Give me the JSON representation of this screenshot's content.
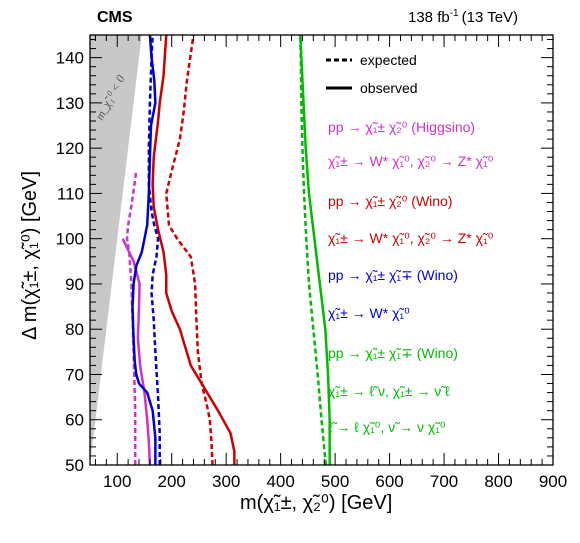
{
  "header": {
    "experiment": "CMS",
    "lumi": "138 fb",
    "lumi_exp": "-1",
    "energy": "(13 TeV)"
  },
  "region_label": "m_χ̃₁⁰ < 0",
  "legend": {
    "expected_label": "expected",
    "observed_label": "observed",
    "entries": [
      {
        "line1": "pp → χ̃₁± χ̃₂⁰ (Higgsino)",
        "line2": "χ̃₁± → W* χ̃₁⁰, χ̃₂⁰ → Z* χ̃₁⁰",
        "color": "#cc33cc"
      },
      {
        "line1": "pp → χ̃₁± χ̃₂⁰ (Wino)",
        "line2": "χ̃₁± → W* χ̃₁⁰, χ̃₂⁰ → Z* χ̃₁⁰",
        "color": "#cc0000"
      },
      {
        "line1": "pp → χ̃₁± χ̃₁∓ (Wino)",
        "line2": "χ̃₁± → W* χ̃₁⁰",
        "color": "#0000cc"
      },
      {
        "line1": "pp → χ̃₁± χ̃₁∓ (Wino)",
        "line2": "χ̃₁± → ℓ̃ ν, χ̃₁± → ν̃ ℓ",
        "line3": "ℓ̃ → ℓ χ̃₁⁰, ν̃ → ν χ̃₁⁰",
        "color": "#00bb00"
      }
    ]
  },
  "chart_data": {
    "type": "line",
    "xlabel": "m(χ̃₁±, χ̃₂⁰) [GeV]",
    "ylabel": "Δ m(χ̃₁±, χ̃₁⁰) [GeV]",
    "xlim": [
      50,
      900
    ],
    "ylim": [
      50,
      145
    ],
    "xticks": [
      100,
      200,
      300,
      400,
      500,
      600,
      700,
      800,
      900
    ],
    "yticks": [
      50,
      60,
      70,
      80,
      90,
      100,
      110,
      120,
      130,
      140
    ],
    "excluded_region": {
      "label": "m_χ̃₁⁰ < 0",
      "color": "#c8c8c8",
      "boundary": [
        [
          50,
          50
        ],
        [
          50,
          145
        ],
        [
          145,
          145
        ]
      ]
    },
    "series": [
      {
        "name": "Higgsino expected",
        "color": "#cc33cc",
        "style": "dashed",
        "points": [
          [
            133,
            50
          ],
          [
            133,
            62
          ],
          [
            130,
            75
          ],
          [
            126,
            90
          ],
          [
            122,
            97
          ],
          [
            118,
            100
          ],
          [
            120,
            103
          ],
          [
            127,
            108
          ],
          [
            135,
            115
          ]
        ]
      },
      {
        "name": "Higgsino observed",
        "color": "#cc33cc",
        "style": "solid",
        "points": [
          [
            160,
            50
          ],
          [
            158,
            55
          ],
          [
            155,
            60
          ],
          [
            150,
            66
          ],
          [
            142,
            72
          ],
          [
            138,
            78
          ],
          [
            140,
            85
          ],
          [
            141,
            90
          ],
          [
            130,
            95
          ],
          [
            118,
            98
          ],
          [
            110,
            100
          ]
        ]
      },
      {
        "name": "Wino chargino-neutralino expected",
        "color": "#cc0000",
        "style": "dashed",
        "points": [
          [
            275,
            50
          ],
          [
            273,
            55
          ],
          [
            270,
            60
          ],
          [
            265,
            63
          ],
          [
            255,
            68
          ],
          [
            248,
            75
          ],
          [
            245,
            83
          ],
          [
            243,
            90
          ],
          [
            235,
            96
          ],
          [
            210,
            100
          ],
          [
            195,
            103
          ],
          [
            190,
            110
          ],
          [
            200,
            115
          ],
          [
            215,
            122
          ],
          [
            222,
            128
          ],
          [
            228,
            135
          ],
          [
            240,
            145
          ]
        ]
      },
      {
        "name": "Wino chargino-neutralino observed",
        "color": "#cc0000",
        "style": "solid",
        "points": [
          [
            315,
            50
          ],
          [
            315,
            53
          ],
          [
            308,
            57
          ],
          [
            285,
            62
          ],
          [
            255,
            68
          ],
          [
            235,
            72
          ],
          [
            225,
            76
          ],
          [
            215,
            80
          ],
          [
            200,
            84
          ],
          [
            190,
            88
          ],
          [
            190,
            92
          ],
          [
            185,
            97
          ],
          [
            175,
            102
          ],
          [
            167,
            107
          ],
          [
            165,
            112
          ],
          [
            167,
            118
          ],
          [
            175,
            126
          ],
          [
            178,
            130
          ],
          [
            185,
            136
          ],
          [
            190,
            145
          ]
        ]
      },
      {
        "name": "Wino chargino-pair W expected",
        "color": "#0000cc",
        "style": "dashed",
        "points": [
          [
            178,
            50
          ],
          [
            178,
            57
          ],
          [
            175,
            65
          ],
          [
            170,
            75
          ],
          [
            167,
            82
          ],
          [
            163,
            88
          ],
          [
            165,
            92
          ],
          [
            172,
            96
          ],
          [
            175,
            100
          ],
          [
            168,
            103
          ],
          [
            163,
            106
          ],
          [
            158,
            112
          ],
          [
            158,
            120
          ],
          [
            160,
            130
          ],
          [
            163,
            140
          ],
          [
            165,
            145
          ]
        ]
      },
      {
        "name": "Wino chargino-pair W observed",
        "color": "#0000cc",
        "style": "solid",
        "points": [
          [
            170,
            50
          ],
          [
            170,
            56
          ],
          [
            165,
            62
          ],
          [
            155,
            66
          ],
          [
            140,
            68
          ],
          [
            135,
            70
          ],
          [
            132,
            73
          ],
          [
            130,
            78
          ],
          [
            128,
            85
          ],
          [
            130,
            90
          ],
          [
            135,
            94
          ],
          [
            145,
            97
          ],
          [
            150,
            100
          ],
          [
            155,
            103
          ],
          [
            158,
            110
          ],
          [
            160,
            118
          ],
          [
            162,
            125
          ],
          [
            170,
            130
          ],
          [
            168,
            135
          ],
          [
            163,
            140
          ],
          [
            160,
            145
          ]
        ]
      },
      {
        "name": "Wino chargino-pair slepton expected",
        "color": "#00bb00",
        "style": "dashed",
        "points": [
          [
            483,
            50
          ],
          [
            475,
            60
          ],
          [
            468,
            70
          ],
          [
            460,
            80
          ],
          [
            452,
            90
          ],
          [
            447,
            100
          ],
          [
            443,
            110
          ],
          [
            440,
            120
          ],
          [
            438,
            130
          ],
          [
            437,
            140
          ],
          [
            436,
            145
          ]
        ]
      },
      {
        "name": "Wino chargino-pair slepton observed",
        "color": "#00bb00",
        "style": "solid",
        "points": [
          [
            490,
            50
          ],
          [
            490,
            60
          ],
          [
            487,
            70
          ],
          [
            482,
            80
          ],
          [
            472,
            90
          ],
          [
            462,
            100
          ],
          [
            452,
            110
          ],
          [
            446,
            120
          ],
          [
            442,
            130
          ],
          [
            438,
            140
          ],
          [
            436,
            145
          ]
        ]
      }
    ]
  }
}
